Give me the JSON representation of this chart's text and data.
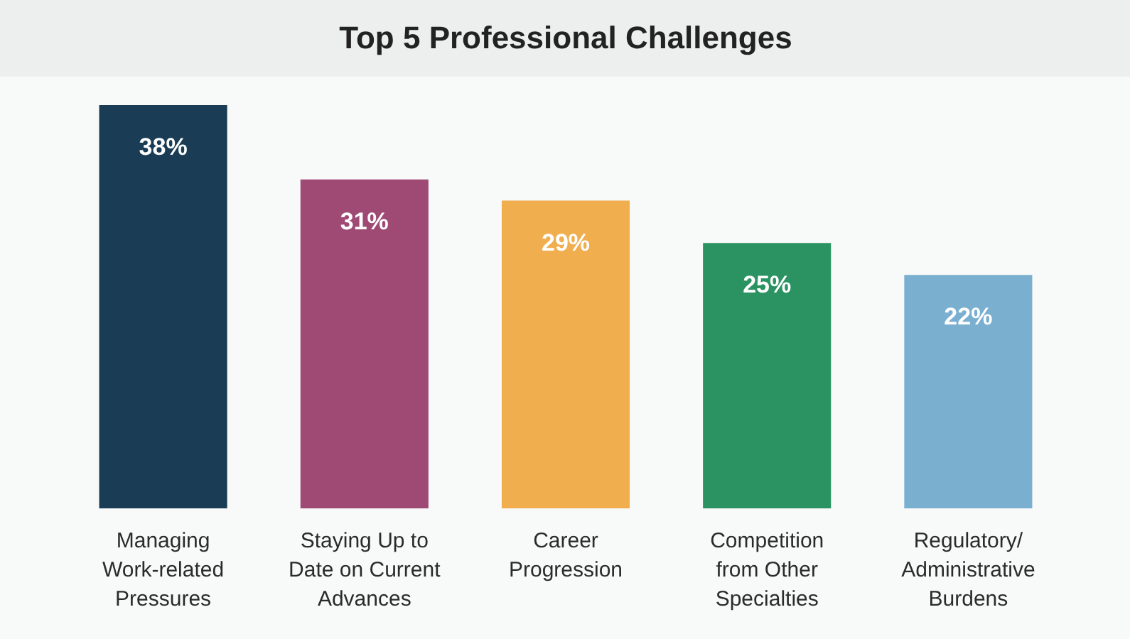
{
  "chart_data": {
    "type": "bar",
    "title": "Top 5 Professional Challenges",
    "categories": [
      "Managing Work-related Pressures",
      "Staying Up to Date on Current Advances",
      "Career Progression",
      "Competition from Other Specialties",
      "Regulatory/Administrative Burdens"
    ],
    "values": [
      38,
      31,
      29,
      25,
      22
    ],
    "colors": [
      "#1a3d55",
      "#9e4a75",
      "#f0ae4f",
      "#2a9361",
      "#7aafd0"
    ],
    "value_labels": [
      "38%",
      "31%",
      "29%",
      "25%",
      "22%"
    ]
  }
}
